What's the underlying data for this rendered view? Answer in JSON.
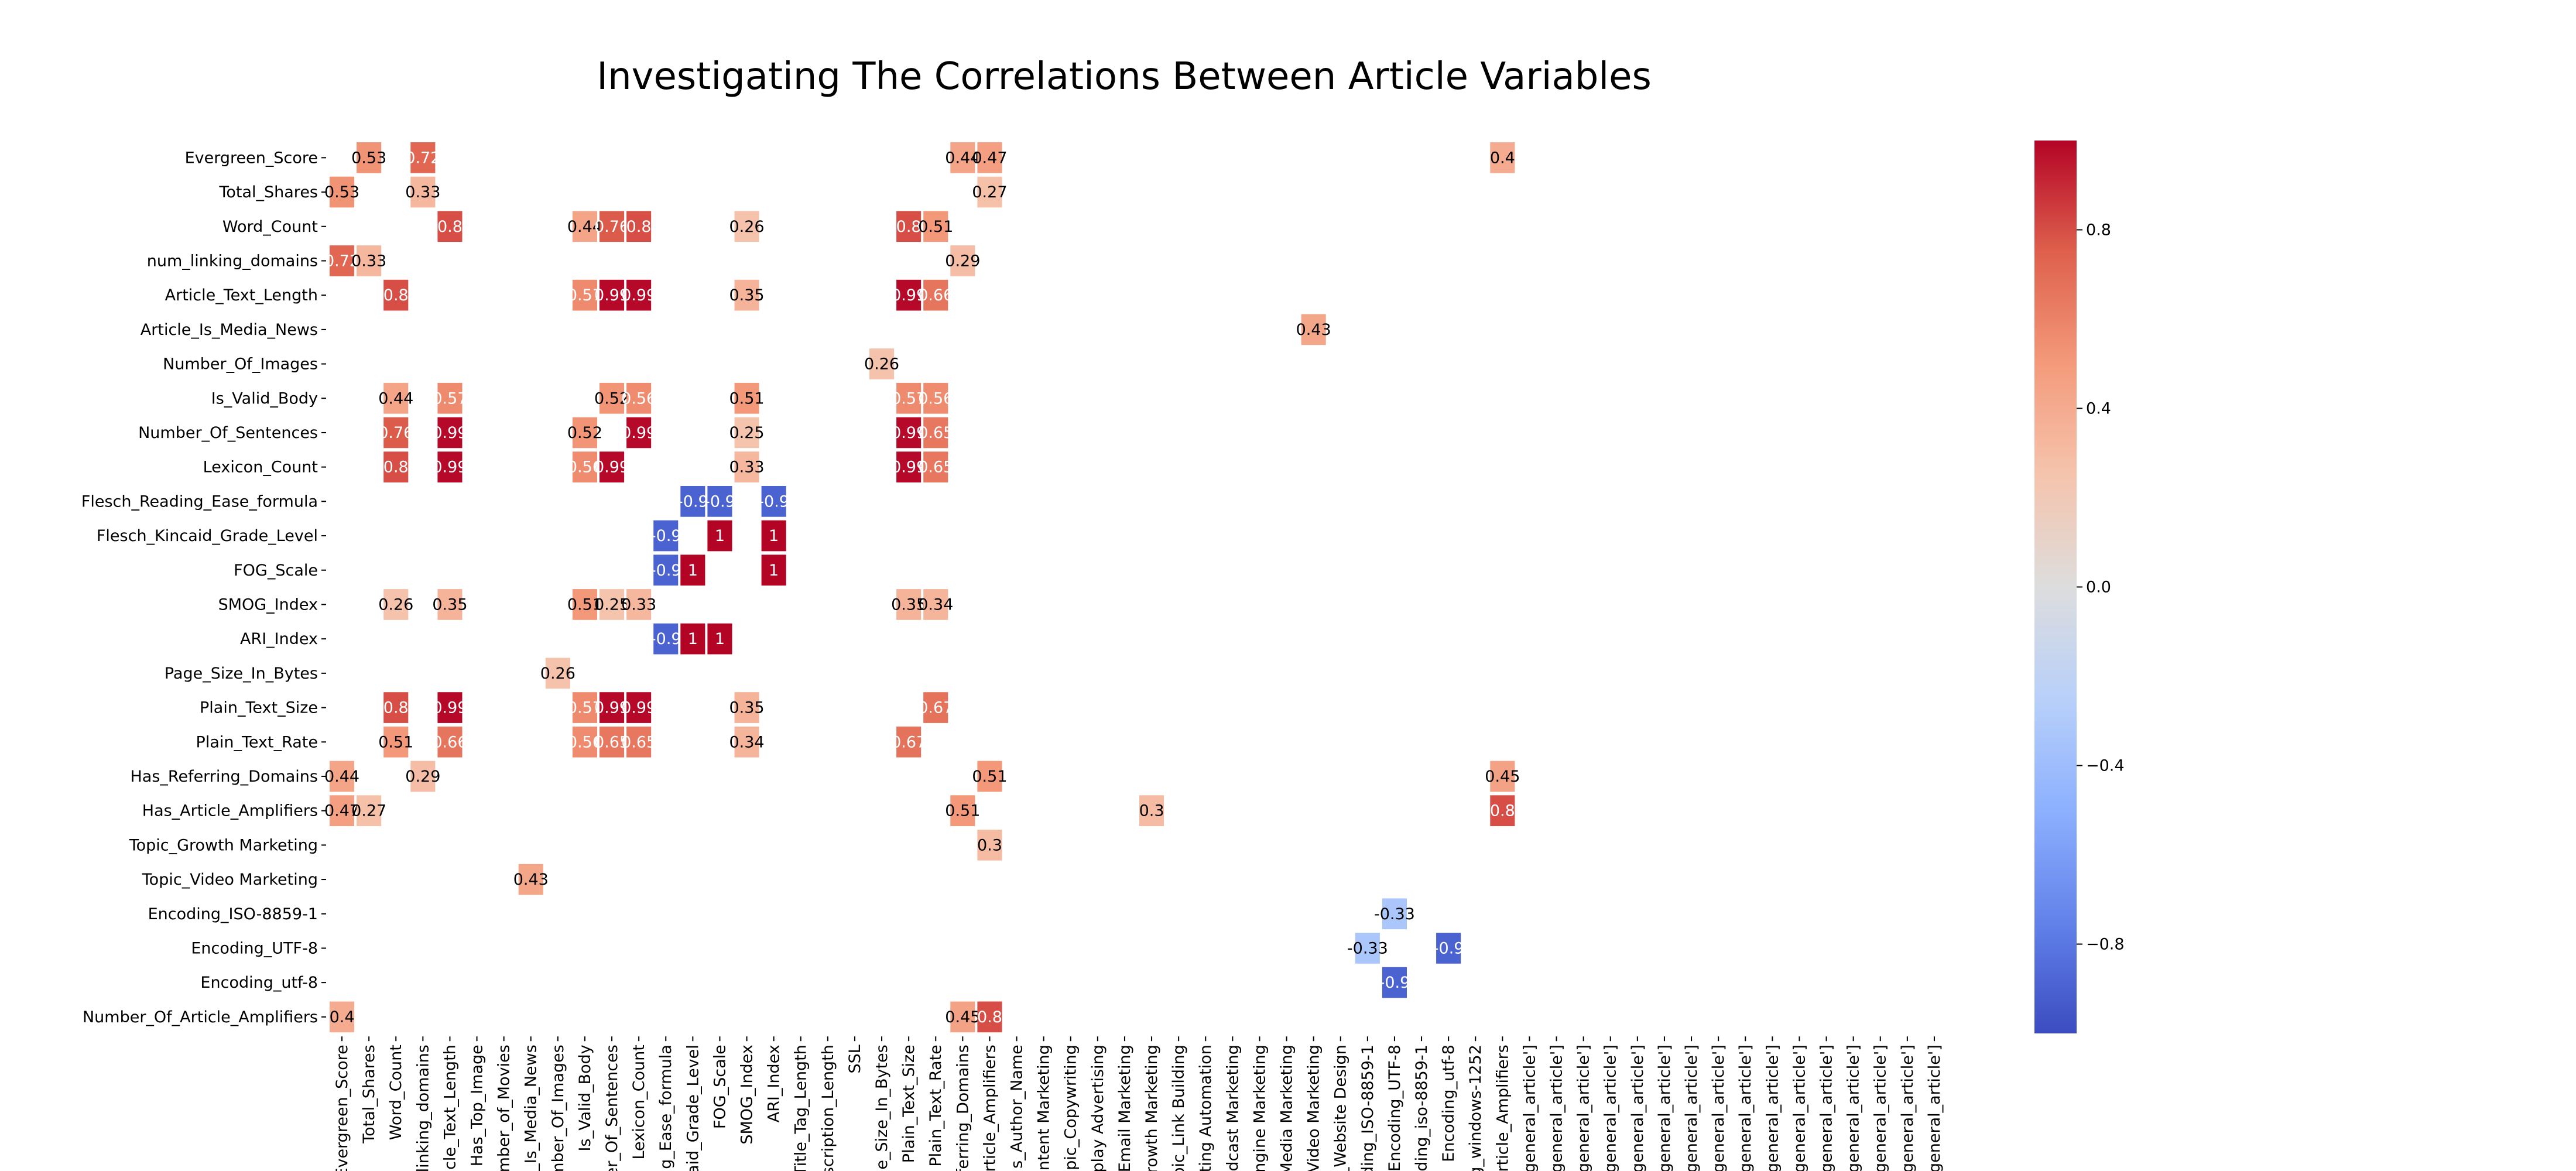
{
  "chart_data": {
    "type": "heatmap",
    "title": "Investigating The Correlations Between Article Variables",
    "row_labels": [
      "Evergreen_Score",
      "Total_Shares",
      "Word_Count",
      "num_linking_domains",
      "Article_Text_Length",
      "Article_Is_Media_News",
      "Number_Of_Images",
      "Is_Valid_Body",
      "Number_Of_Sentences",
      "Lexicon_Count",
      "Flesch_Reading_Ease_formula",
      "Flesch_Kincaid_Grade_Level",
      "FOG_Scale",
      "SMOG_Index",
      "ARI_Index",
      "Page_Size_In_Bytes",
      "Plain_Text_Size",
      "Plain_Text_Rate",
      "Has_Referring_Domains",
      "Has_Article_Amplifiers",
      "Topic_Growth Marketing",
      "Topic_Video Marketing",
      "Encoding_ISO-8859-1",
      "Encoding_UTF-8",
      "Encoding_utf-8",
      "Number_Of_Article_Amplifiers"
    ],
    "column_labels": [
      "Evergreen_Score",
      "Total_Shares",
      "Word_Count",
      "linking_domains",
      "cle_Text_Length",
      "Has_Top_Image",
      "mber_of_Movies",
      "_Is_Media_News",
      "mber_Of_Images",
      "Is_Valid_Body",
      "er_Of_Sentences",
      "Lexicon_Count",
      "g_Ease_formula",
      "aid_Grade_Level",
      "FOG_Scale",
      "SMOG_Index",
      "ARI_Index",
      "Title_Tag_Length",
      "scription_Length",
      "SSL",
      "ge_Size_In_Bytes",
      "Plain_Text_Size",
      "Plain_Text_Rate",
      "ferring_Domains",
      "rticle_Amplifiers",
      "s_Author_Name",
      "ontent Marketing",
      "opic_Copywriting",
      "splay Advertising",
      "_Email Marketing",
      "rowth Marketing",
      "pic_Link Building",
      "ting Automation",
      "dcast Marketing",
      "ngine Marketing",
      "Media Marketing",
      "_Video Marketing",
      "_Website Design",
      "ding_ISO-8859-1",
      "Encoding_UTF-8",
      "ding_iso-8859-1",
      "Encoding_utf-8",
      "g_windows-1252",
      "rticle_Amplifiers",
      "'general_article']",
      "'general_article']",
      "'general_article']",
      "'general_article']",
      "'general_article']",
      "'general_article']",
      "'general_article']",
      "'general_article']",
      "'general_article']",
      "'general_article']",
      "'general_article']",
      "'general_article']",
      "'general_article']",
      "'general_article']",
      "'general_article']",
      "'general_article']"
    ],
    "cells": [
      {
        "row": 0,
        "col": 1,
        "value": 0.53,
        "label": "0.53"
      },
      {
        "row": 0,
        "col": 3,
        "value": 0.72,
        "label": "0.72"
      },
      {
        "row": 0,
        "col": 23,
        "value": 0.44,
        "label": "0.44"
      },
      {
        "row": 0,
        "col": 24,
        "value": 0.47,
        "label": "0.47"
      },
      {
        "row": 0,
        "col": 43,
        "value": 0.4,
        "label": "0.4"
      },
      {
        "row": 1,
        "col": 0,
        "value": 0.53,
        "label": "0.53"
      },
      {
        "row": 1,
        "col": 3,
        "value": 0.33,
        "label": "0.33"
      },
      {
        "row": 1,
        "col": 24,
        "value": 0.27,
        "label": "0.27"
      },
      {
        "row": 2,
        "col": 4,
        "value": 0.8,
        "label": "0.8"
      },
      {
        "row": 2,
        "col": 9,
        "value": 0.44,
        "label": "0.44"
      },
      {
        "row": 2,
        "col": 10,
        "value": 0.76,
        "label": "0.76"
      },
      {
        "row": 2,
        "col": 11,
        "value": 0.8,
        "label": "0.8"
      },
      {
        "row": 2,
        "col": 15,
        "value": 0.26,
        "label": "0.26"
      },
      {
        "row": 2,
        "col": 21,
        "value": 0.8,
        "label": "0.8"
      },
      {
        "row": 2,
        "col": 22,
        "value": 0.51,
        "label": "0.51"
      },
      {
        "row": 3,
        "col": 0,
        "value": 0.72,
        "label": "0.72"
      },
      {
        "row": 3,
        "col": 1,
        "value": 0.33,
        "label": "0.33"
      },
      {
        "row": 3,
        "col": 23,
        "value": 0.29,
        "label": "0.29"
      },
      {
        "row": 4,
        "col": 2,
        "value": 0.8,
        "label": "0.8"
      },
      {
        "row": 4,
        "col": 9,
        "value": 0.57,
        "label": "0.57"
      },
      {
        "row": 4,
        "col": 10,
        "value": 0.99,
        "label": "0.99"
      },
      {
        "row": 4,
        "col": 11,
        "value": 0.99,
        "label": "0.99"
      },
      {
        "row": 4,
        "col": 15,
        "value": 0.35,
        "label": "0.35"
      },
      {
        "row": 4,
        "col": 21,
        "value": 0.99,
        "label": "0.99"
      },
      {
        "row": 4,
        "col": 22,
        "value": 0.66,
        "label": "0.66"
      },
      {
        "row": 5,
        "col": 36,
        "value": 0.43,
        "label": "0.43"
      },
      {
        "row": 6,
        "col": 20,
        "value": 0.26,
        "label": "0.26"
      },
      {
        "row": 7,
        "col": 2,
        "value": 0.44,
        "label": "0.44"
      },
      {
        "row": 7,
        "col": 4,
        "value": 0.57,
        "label": "0.57"
      },
      {
        "row": 7,
        "col": 10,
        "value": 0.52,
        "label": "0.52"
      },
      {
        "row": 7,
        "col": 11,
        "value": 0.56,
        "label": "0.56"
      },
      {
        "row": 7,
        "col": 15,
        "value": 0.51,
        "label": "0.51"
      },
      {
        "row": 7,
        "col": 21,
        "value": 0.57,
        "label": "0.57"
      },
      {
        "row": 7,
        "col": 22,
        "value": 0.56,
        "label": "0.56"
      },
      {
        "row": 8,
        "col": 2,
        "value": 0.76,
        "label": "0.76"
      },
      {
        "row": 8,
        "col": 4,
        "value": 0.99,
        "label": "0.99"
      },
      {
        "row": 8,
        "col": 9,
        "value": 0.52,
        "label": "0.52"
      },
      {
        "row": 8,
        "col": 11,
        "value": 0.99,
        "label": "0.99"
      },
      {
        "row": 8,
        "col": 15,
        "value": 0.25,
        "label": "0.25"
      },
      {
        "row": 8,
        "col": 21,
        "value": 0.99,
        "label": "0.99"
      },
      {
        "row": 8,
        "col": 22,
        "value": 0.65,
        "label": "0.65"
      },
      {
        "row": 9,
        "col": 2,
        "value": 0.8,
        "label": "0.8"
      },
      {
        "row": 9,
        "col": 4,
        "value": 0.99,
        "label": "0.99"
      },
      {
        "row": 9,
        "col": 9,
        "value": 0.56,
        "label": "0.56"
      },
      {
        "row": 9,
        "col": 10,
        "value": 0.99,
        "label": "0.99"
      },
      {
        "row": 9,
        "col": 15,
        "value": 0.33,
        "label": "0.33"
      },
      {
        "row": 9,
        "col": 21,
        "value": 0.99,
        "label": "0.99"
      },
      {
        "row": 9,
        "col": 22,
        "value": 0.65,
        "label": "0.65"
      },
      {
        "row": 10,
        "col": 13,
        "value": -0.9,
        "label": "-0.9"
      },
      {
        "row": 10,
        "col": 14,
        "value": -0.9,
        "label": "-0.9"
      },
      {
        "row": 10,
        "col": 16,
        "value": -0.9,
        "label": "-0.9"
      },
      {
        "row": 11,
        "col": 12,
        "value": -0.9,
        "label": "-0.9"
      },
      {
        "row": 11,
        "col": 14,
        "value": 1,
        "label": "1"
      },
      {
        "row": 11,
        "col": 16,
        "value": 1,
        "label": "1"
      },
      {
        "row": 12,
        "col": 12,
        "value": -0.9,
        "label": "-0.9"
      },
      {
        "row": 12,
        "col": 13,
        "value": 1,
        "label": "1"
      },
      {
        "row": 12,
        "col": 16,
        "value": 1,
        "label": "1"
      },
      {
        "row": 13,
        "col": 2,
        "value": 0.26,
        "label": "0.26"
      },
      {
        "row": 13,
        "col": 4,
        "value": 0.35,
        "label": "0.35"
      },
      {
        "row": 13,
        "col": 9,
        "value": 0.51,
        "label": "0.51"
      },
      {
        "row": 13,
        "col": 10,
        "value": 0.25,
        "label": "0.25"
      },
      {
        "row": 13,
        "col": 11,
        "value": 0.33,
        "label": "0.33"
      },
      {
        "row": 13,
        "col": 21,
        "value": 0.35,
        "label": "0.35"
      },
      {
        "row": 13,
        "col": 22,
        "value": 0.34,
        "label": "0.34"
      },
      {
        "row": 14,
        "col": 12,
        "value": -0.9,
        "label": "-0.9"
      },
      {
        "row": 14,
        "col": 13,
        "value": 1,
        "label": "1"
      },
      {
        "row": 14,
        "col": 14,
        "value": 1,
        "label": "1"
      },
      {
        "row": 15,
        "col": 8,
        "value": 0.26,
        "label": "0.26"
      },
      {
        "row": 16,
        "col": 2,
        "value": 0.8,
        "label": "0.8"
      },
      {
        "row": 16,
        "col": 4,
        "value": 0.99,
        "label": "0.99"
      },
      {
        "row": 16,
        "col": 9,
        "value": 0.57,
        "label": "0.57"
      },
      {
        "row": 16,
        "col": 10,
        "value": 0.99,
        "label": "0.99"
      },
      {
        "row": 16,
        "col": 11,
        "value": 0.99,
        "label": "0.99"
      },
      {
        "row": 16,
        "col": 15,
        "value": 0.35,
        "label": "0.35"
      },
      {
        "row": 16,
        "col": 22,
        "value": 0.67,
        "label": "0.67"
      },
      {
        "row": 17,
        "col": 2,
        "value": 0.51,
        "label": "0.51"
      },
      {
        "row": 17,
        "col": 4,
        "value": 0.66,
        "label": "0.66"
      },
      {
        "row": 17,
        "col": 9,
        "value": 0.56,
        "label": "0.56"
      },
      {
        "row": 17,
        "col": 10,
        "value": 0.65,
        "label": "0.65"
      },
      {
        "row": 17,
        "col": 11,
        "value": 0.65,
        "label": "0.65"
      },
      {
        "row": 17,
        "col": 15,
        "value": 0.34,
        "label": "0.34"
      },
      {
        "row": 17,
        "col": 21,
        "value": 0.67,
        "label": "0.67"
      },
      {
        "row": 18,
        "col": 0,
        "value": 0.44,
        "label": "0.44"
      },
      {
        "row": 18,
        "col": 3,
        "value": 0.29,
        "label": "0.29"
      },
      {
        "row": 18,
        "col": 24,
        "value": 0.51,
        "label": "0.51"
      },
      {
        "row": 18,
        "col": 43,
        "value": 0.45,
        "label": "0.45"
      },
      {
        "row": 19,
        "col": 0,
        "value": 0.47,
        "label": "0.47"
      },
      {
        "row": 19,
        "col": 1,
        "value": 0.27,
        "label": "0.27"
      },
      {
        "row": 19,
        "col": 23,
        "value": 0.51,
        "label": "0.51"
      },
      {
        "row": 19,
        "col": 30,
        "value": 0.3,
        "label": "0.3"
      },
      {
        "row": 19,
        "col": 43,
        "value": 0.8,
        "label": "0.8"
      },
      {
        "row": 20,
        "col": 24,
        "value": 0.3,
        "label": "0.3"
      },
      {
        "row": 21,
        "col": 7,
        "value": 0.43,
        "label": "0.43"
      },
      {
        "row": 22,
        "col": 39,
        "value": -0.33,
        "label": "-0.33"
      },
      {
        "row": 23,
        "col": 38,
        "value": -0.33,
        "label": "-0.33"
      },
      {
        "row": 23,
        "col": 41,
        "value": -0.9,
        "label": "-0.9"
      },
      {
        "row": 24,
        "col": 39,
        "value": -0.9,
        "label": "-0.9"
      },
      {
        "row": 25,
        "col": 0,
        "value": 0.4,
        "label": "0.4"
      },
      {
        "row": 25,
        "col": 23,
        "value": 0.45,
        "label": "0.45"
      },
      {
        "row": 25,
        "col": 24,
        "value": 0.8,
        "label": "0.8"
      }
    ],
    "colorbar": {
      "colormap": "coolwarm",
      "range": [
        -1,
        1
      ],
      "ticks": [
        0.8,
        0.4,
        0.0,
        -0.4,
        -0.8
      ],
      "tick_labels": [
        "0.8",
        "0.4",
        "0.0",
        "−0.4",
        "−0.8"
      ]
    },
    "grid": false,
    "colorbar_position": "right"
  }
}
